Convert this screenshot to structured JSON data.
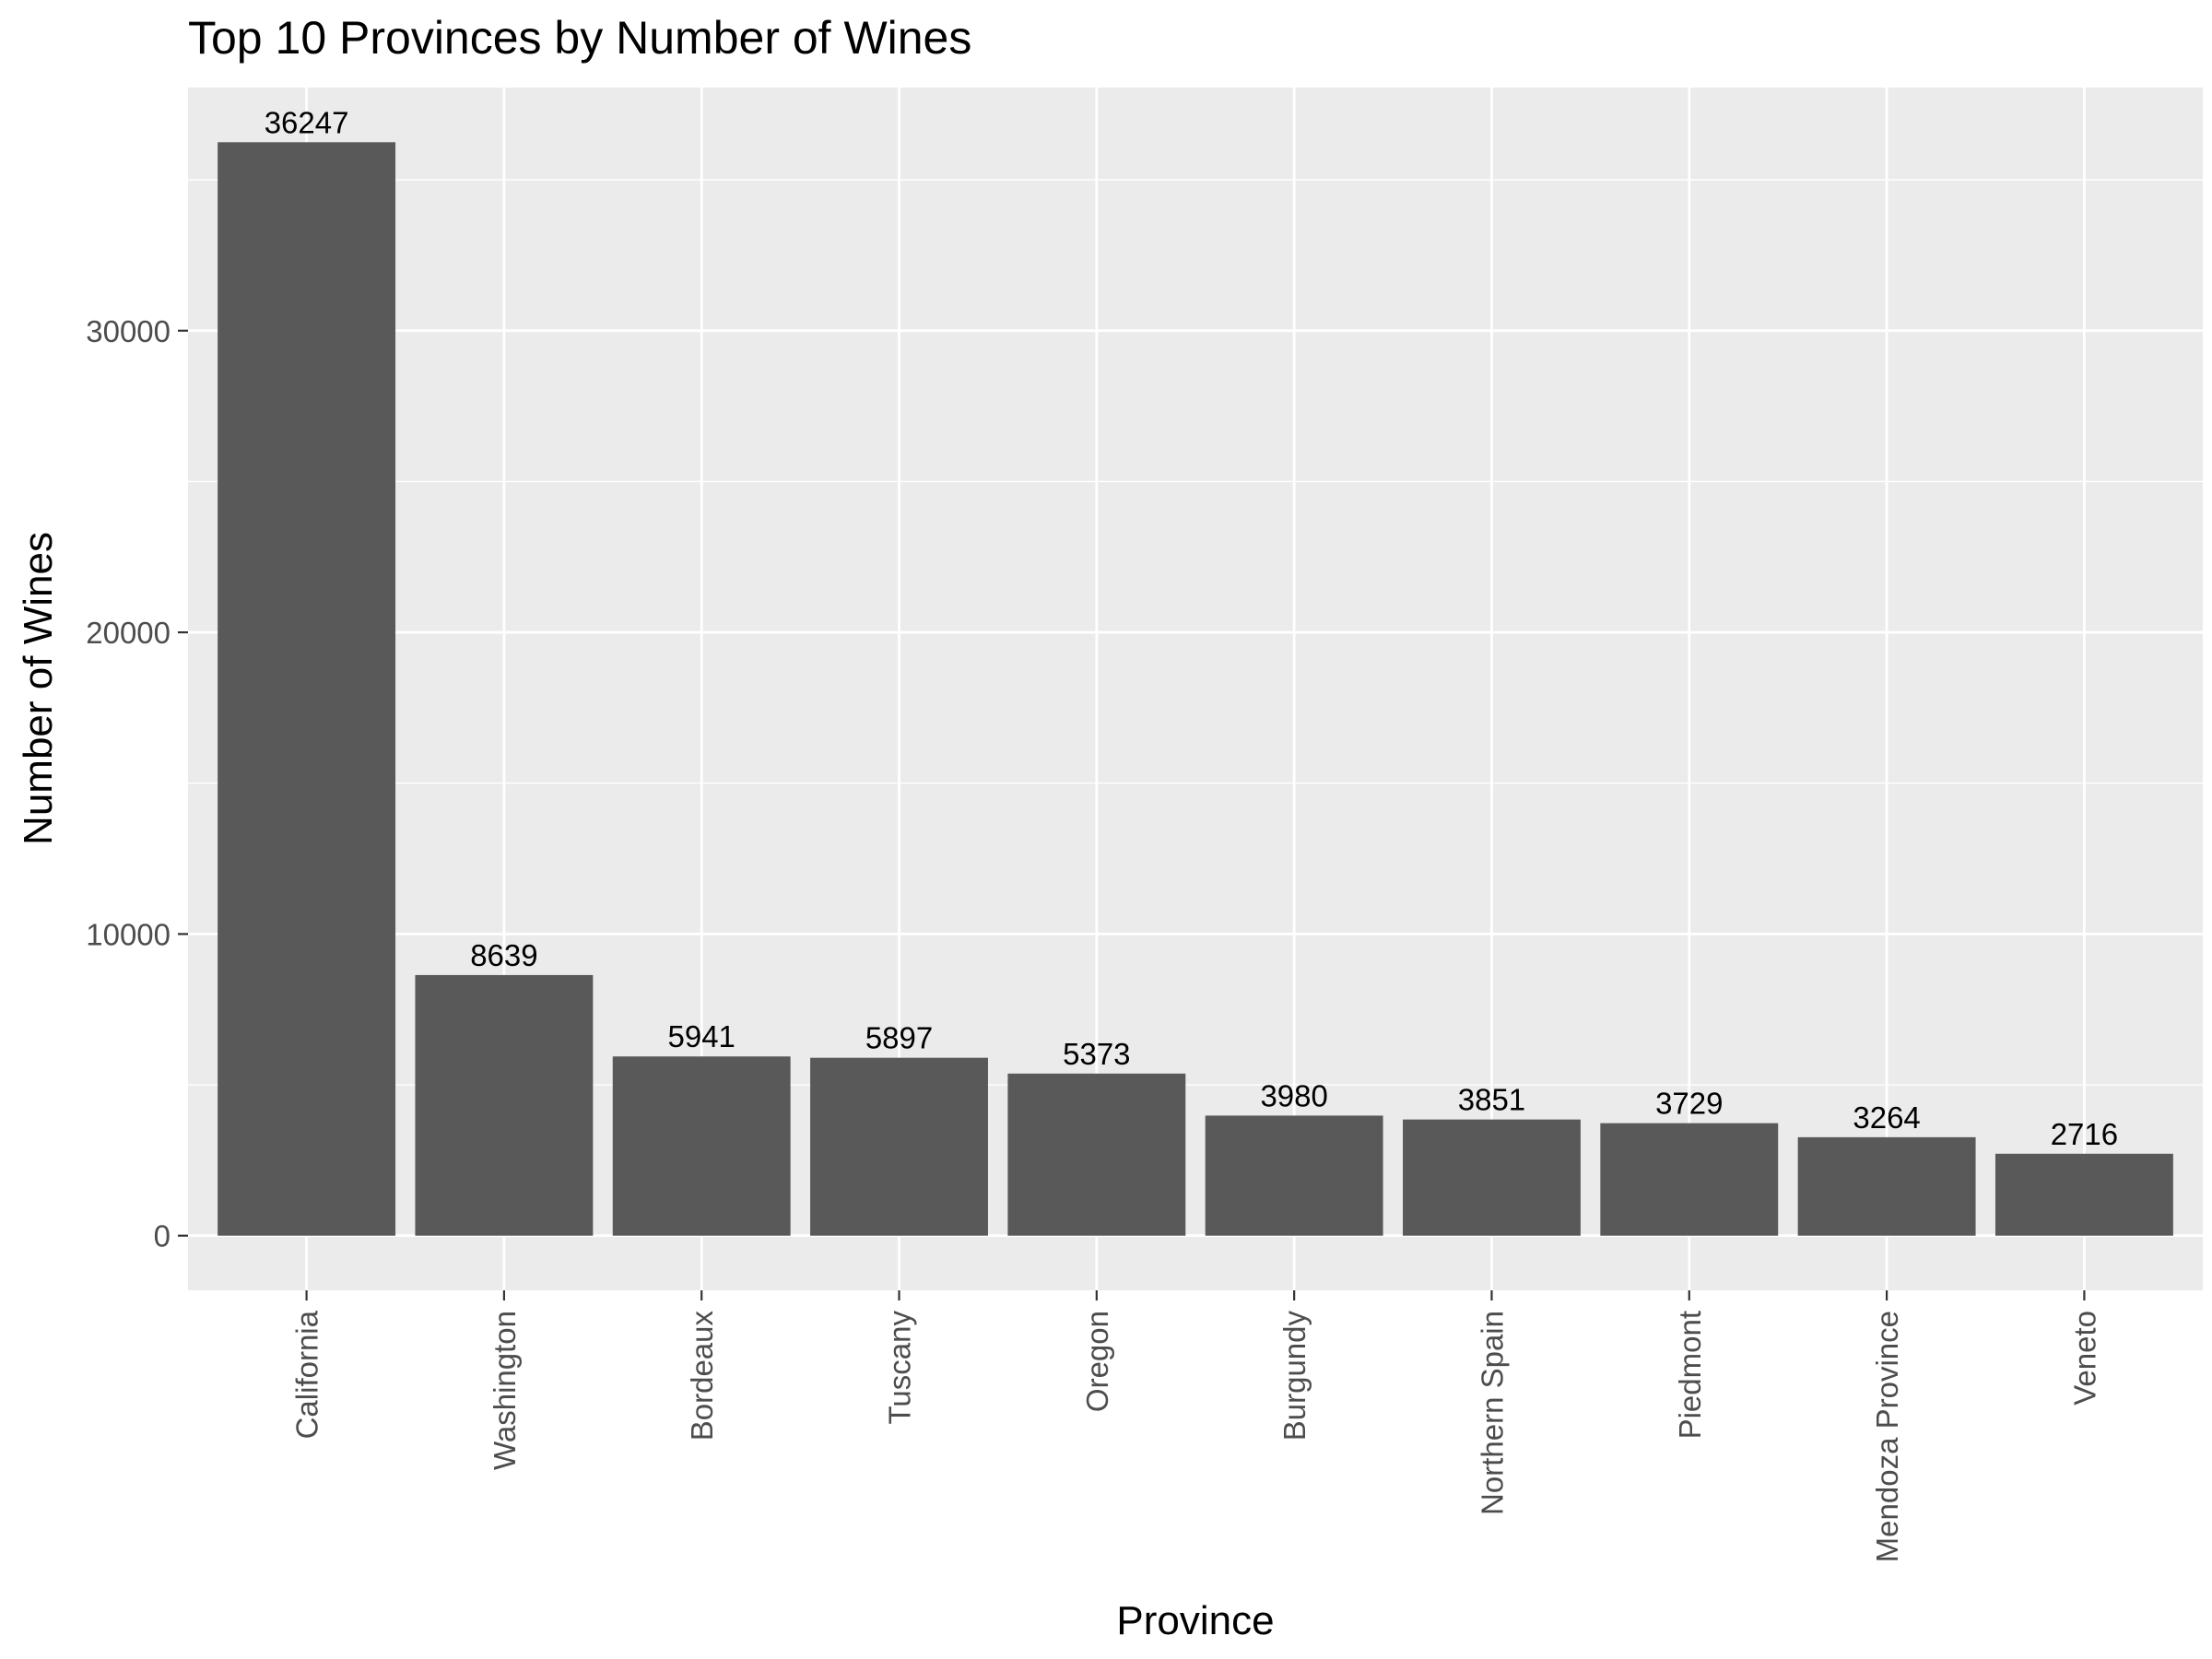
{
  "chart_data": {
    "type": "bar",
    "title": "Top 10 Provinces by Number of Wines",
    "xlabel": "Province",
    "ylabel": "Number of Wines",
    "categories": [
      "California",
      "Washington",
      "Bordeaux",
      "Tuscany",
      "Oregon",
      "Burgundy",
      "Northern Spain",
      "Piedmont",
      "Mendoza Province",
      "Veneto"
    ],
    "values": [
      36247,
      8639,
      5941,
      5897,
      5373,
      3980,
      3851,
      3729,
      3264,
      2716
    ],
    "data_labels": [
      "36247",
      "8639",
      "5941",
      "5897",
      "5373",
      "3980",
      "3851",
      "3729",
      "3264",
      "2716"
    ],
    "yticks": [
      0,
      10000,
      20000,
      30000
    ],
    "ytick_labels": [
      "0",
      "10000",
      "20000",
      "30000"
    ],
    "ylim": [
      -1812,
      38059
    ],
    "grid": true,
    "legend": "none",
    "colors": {
      "bar": "#595959",
      "panel": "#ebebeb",
      "grid": "#ffffff",
      "axis_text": "#4d4d4d",
      "text": "#000000"
    }
  }
}
